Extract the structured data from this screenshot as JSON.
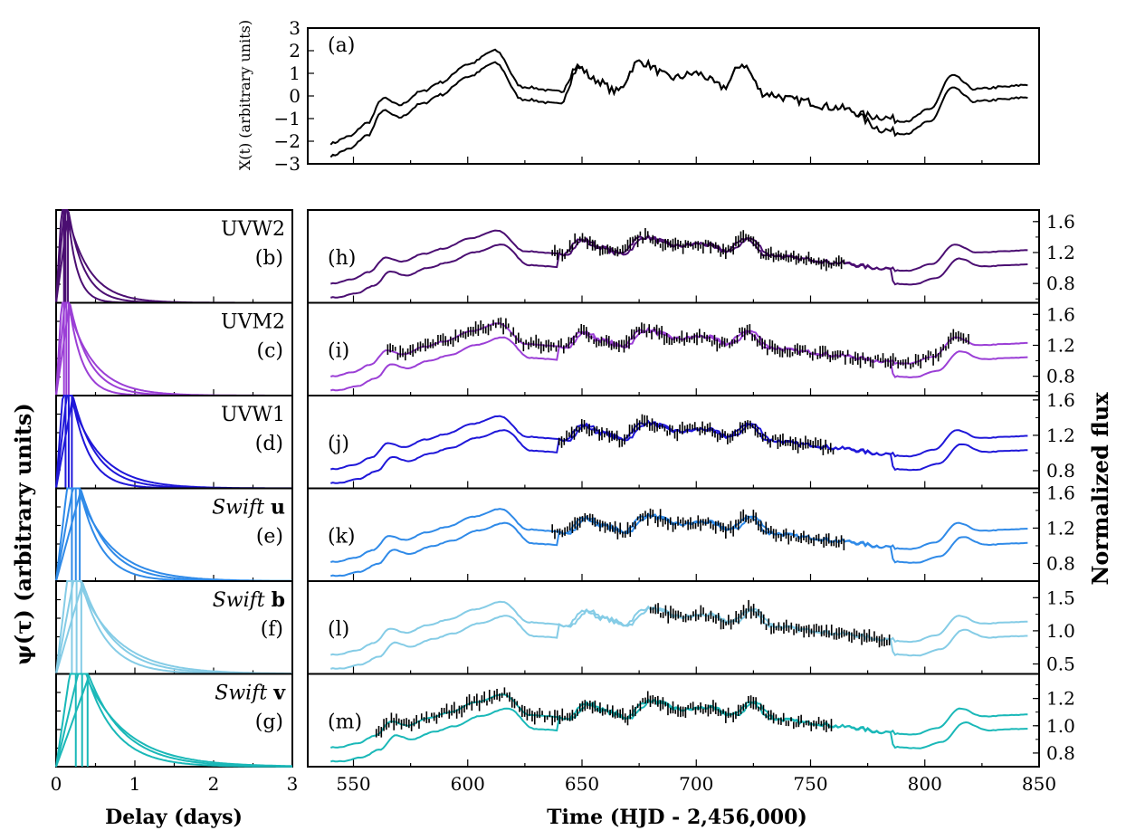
{
  "figure": {
    "xlabel_left": "Delay (days)",
    "xlabel_right": "Time (HJD - 2,456,000)",
    "ylabel_left": "ψ(τ) (arbitrary units)",
    "ylabel_right": "Normalized flux",
    "ylabel_top": "X(t) (arbitrary units)"
  },
  "chart_data": [
    {
      "id": "a",
      "type": "line",
      "panel_label": "(a)",
      "ylabel": "X(t) (arbitrary units)",
      "xlim": [
        540,
        845
      ],
      "ylim": [
        -3,
        3
      ],
      "yticks": [
        "3",
        "2",
        "1",
        "0",
        "−1",
        "−2",
        "−3"
      ],
      "series_color": "#000000",
      "knots": [
        [
          540,
          -2.1
        ],
        [
          548,
          -1.8
        ],
        [
          556,
          -1.2
        ],
        [
          563,
          -0.1
        ],
        [
          570,
          -0.4
        ],
        [
          580,
          0.2
        ],
        [
          588,
          0.6
        ],
        [
          600,
          1.4
        ],
        [
          612,
          2.0
        ],
        [
          624,
          0.4
        ],
        [
          640,
          0.2
        ],
        [
          648,
          1.3
        ],
        [
          656,
          0.7
        ],
        [
          665,
          0.2
        ],
        [
          675,
          1.5
        ],
        [
          690,
          0.8
        ],
        [
          700,
          1.0
        ],
        [
          712,
          0.4
        ],
        [
          720,
          1.4
        ],
        [
          730,
          0.1
        ],
        [
          745,
          -0.2
        ],
        [
          760,
          -0.5
        ],
        [
          778,
          -0.9
        ],
        [
          792,
          -1.1
        ],
        [
          802,
          -0.6
        ],
        [
          812,
          0.9
        ],
        [
          822,
          0.3
        ],
        [
          835,
          0.4
        ],
        [
          845,
          0.5
        ]
      ],
      "offset_series": 0.45
    },
    {
      "id": "uvw2",
      "band": "UVW2",
      "color": "#4b0e72",
      "left_label": "UVW2",
      "left_panel": "(b)",
      "right_panel": "(h)",
      "yticks": [
        "1.6",
        "1.2",
        "0.8"
      ],
      "ylim": [
        0.55,
        1.75
      ],
      "tau_peak": [
        0.1,
        0.12,
        0.15
      ],
      "obs_range": [
        637,
        765
      ]
    },
    {
      "id": "uvm2",
      "band": "UVM2",
      "color": "#9b3fd6",
      "left_label": "UVM2",
      "left_panel": "(c)",
      "right_panel": "(i)",
      "yticks": [
        "1.6",
        "1.2",
        "0.8"
      ],
      "ylim": [
        0.55,
        1.75
      ],
      "tau_peak": [
        0.1,
        0.13,
        0.16
      ],
      "obs_range": [
        565,
        820
      ]
    },
    {
      "id": "uvw1",
      "band": "UVW1",
      "color": "#1f17d9",
      "left_label": "UVW1",
      "left_panel": "(d)",
      "right_panel": "(j)",
      "yticks": [
        "1.6",
        "1.2",
        "0.8"
      ],
      "ylim": [
        0.6,
        1.65
      ],
      "tau_peak": [
        0.12,
        0.16,
        0.2
      ],
      "obs_range": [
        640,
        760
      ]
    },
    {
      "id": "swu",
      "band": "Swift u",
      "color": "#2f8ae8",
      "left_label_italic": "Swift",
      "left_label_plain": "u",
      "left_panel": "(e)",
      "right_panel": "(k)",
      "yticks": [
        "1.6",
        "1.2",
        "0.8"
      ],
      "ylim": [
        0.6,
        1.65
      ],
      "tau_peak": [
        0.2,
        0.25,
        0.3
      ],
      "obs_range": [
        637,
        765
      ]
    },
    {
      "id": "swb",
      "band": "Swift b",
      "color": "#85cce6",
      "left_label_italic": "Swift",
      "left_label_plain": "b",
      "left_panel": "(f)",
      "right_panel": "(l)",
      "yticks": [
        "1.5",
        "1.0",
        "0.5"
      ],
      "ylim": [
        0.35,
        1.75
      ],
      "tau_peak": [
        0.2,
        0.26,
        0.32
      ],
      "obs_range": [
        680,
        785
      ]
    },
    {
      "id": "swv",
      "band": "Swift v",
      "color": "#1ab8b8",
      "left_label_italic": "Swift",
      "left_label_plain": "v",
      "left_panel": "(g)",
      "right_panel": "(m)",
      "yticks": [
        "1.2",
        "1.0",
        "0.8"
      ],
      "ylim": [
        0.7,
        1.38
      ],
      "tau_peak": [
        0.25,
        0.33,
        0.4
      ],
      "obs_range": [
        560,
        760
      ]
    }
  ],
  "axes": {
    "left_xlim": [
      0,
      3
    ],
    "left_xticks": [
      "0",
      "1",
      "2",
      "3"
    ],
    "right_xlim": [
      530,
      850
    ],
    "right_xticks": [
      "550",
      "600",
      "650",
      "700",
      "750",
      "800",
      "850"
    ]
  }
}
